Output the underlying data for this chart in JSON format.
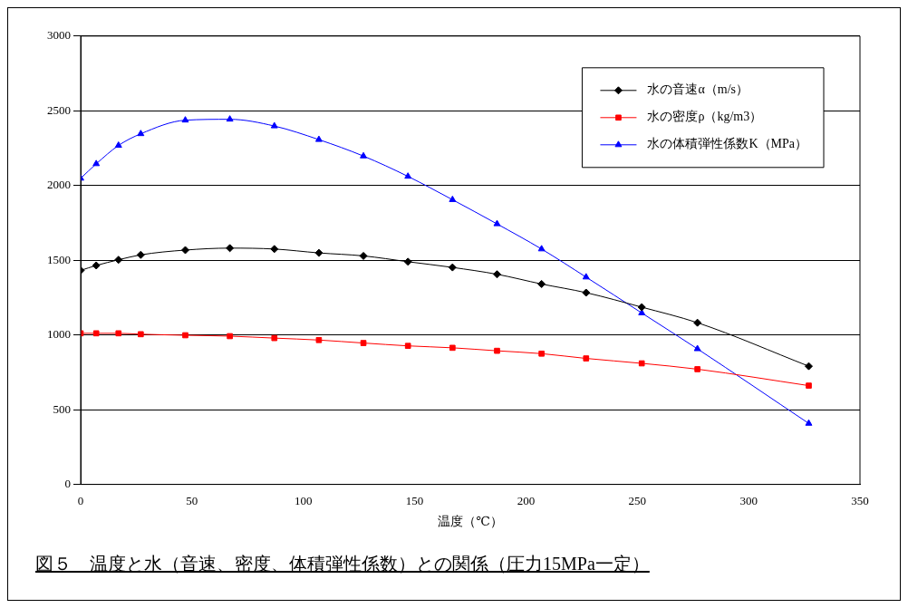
{
  "chart_data": {
    "type": "line",
    "xlabel": "温度（℃）",
    "x": [
      0,
      7,
      17,
      27,
      47,
      67,
      87,
      107,
      127,
      147,
      167,
      187,
      207,
      227,
      252,
      277,
      327
    ],
    "series": [
      {
        "name": "水の音速α（m/s）",
        "color": "#000000",
        "marker": "diamond",
        "values": [
          1432,
          1465,
          1503,
          1536,
          1568,
          1581,
          1575,
          1549,
          1529,
          1490,
          1452,
          1406,
          1341,
          1283,
          1186,
          1082,
          791
        ]
      },
      {
        "name": "水の密度ρ（kg/m3）",
        "color": "#ff0000",
        "marker": "square",
        "values": [
          1011,
          1011,
          1011,
          1005,
          998,
          992,
          979,
          966,
          946,
          927,
          914,
          894,
          875,
          843,
          810,
          771,
          661
        ]
      },
      {
        "name": "水の体積弾性係数K（MPa）",
        "color": "#0000ff",
        "marker": "triangle",
        "values": [
          2048,
          2145,
          2268,
          2346,
          2437,
          2443,
          2398,
          2307,
          2197,
          2061,
          1905,
          1743,
          1575,
          1387,
          1147,
          907,
          408
        ]
      }
    ],
    "xlim": [
      0,
      350
    ],
    "xticks": [
      0,
      50,
      100,
      150,
      200,
      250,
      300,
      350
    ],
    "ylim": [
      0,
      3000
    ],
    "yticks": [
      0,
      500,
      1000,
      1500,
      2000,
      2500,
      3000
    ],
    "grid": "y",
    "legend": "top right",
    "line_style": "solid",
    "annotations": [
      "図５　温度と水（音速、密度、体積弾性係数）との関係（圧力15MPa一定）"
    ]
  }
}
